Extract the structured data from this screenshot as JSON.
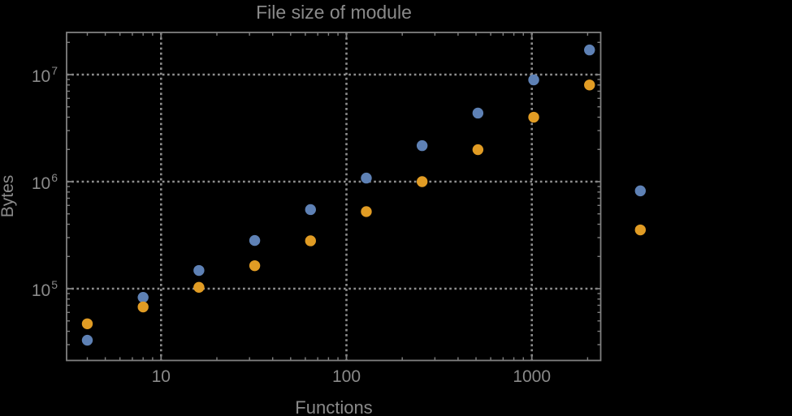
{
  "chart_data": {
    "type": "scatter",
    "title": "File size of module",
    "xlabel": "Functions",
    "ylabel": "Bytes",
    "x_scale": "log",
    "y_scale": "log",
    "x_range": [
      3.2,
      2350
    ],
    "y_range": [
      21500,
      24500000
    ],
    "grid": {
      "style": "dotted",
      "color": "#8e8e8e"
    },
    "frame_color": "#808080",
    "text_color": "#8a8a8a",
    "background": "#000000",
    "legend": "none",
    "x_ticks": [
      {
        "label": "10",
        "value": 10
      },
      {
        "label": "100",
        "value": 100
      },
      {
        "label": "1000",
        "value": 1000
      }
    ],
    "y_ticks": [
      {
        "base": "10",
        "exp": "5",
        "value": 100000
      },
      {
        "base": "10",
        "exp": "6",
        "value": 1000000
      },
      {
        "base": "10",
        "exp": "7",
        "value": 10000000
      }
    ],
    "series": [
      {
        "name": "series-1-blue",
        "color": "#5e81b5",
        "points": [
          [
            4,
            33000
          ],
          [
            8,
            83000
          ],
          [
            16,
            148000
          ],
          [
            32,
            282000
          ],
          [
            64,
            548000
          ],
          [
            128,
            1080000
          ],
          [
            256,
            2170000
          ],
          [
            512,
            4370000
          ],
          [
            1024,
            8930000
          ],
          [
            2048,
            17000000
          ],
          [
            3850,
            820000
          ]
        ]
      },
      {
        "name": "series-2-orange",
        "color": "#e19c24",
        "points": [
          [
            4,
            47000
          ],
          [
            8,
            67500
          ],
          [
            16,
            103000
          ],
          [
            32,
            164000
          ],
          [
            64,
            280000
          ],
          [
            128,
            525000
          ],
          [
            256,
            1000000
          ],
          [
            512,
            1990000
          ],
          [
            1024,
            4000000
          ],
          [
            2048,
            8000000
          ],
          [
            3850,
            354000
          ]
        ]
      }
    ]
  }
}
